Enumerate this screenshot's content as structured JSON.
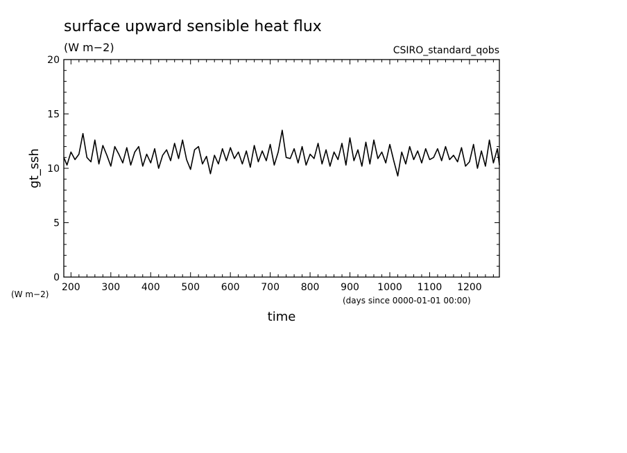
{
  "chart_data": {
    "type": "line",
    "title": "surface upward sensible heat flux",
    "units": "(W m−2)",
    "run_label": "CSIRO_standard_qobs",
    "xlabel": "time",
    "x_units": "(days since 0000-01-01 00:00)",
    "ylabel": "gt_ssh",
    "y_units": "(W m−2)",
    "xlim": [
      182,
      1275
    ],
    "ylim": [
      0,
      20
    ],
    "x_ticks": [
      200,
      300,
      400,
      500,
      600,
      700,
      800,
      900,
      1000,
      1100,
      1200
    ],
    "y_ticks": [
      0,
      5,
      10,
      15,
      20
    ],
    "grid": false,
    "legend": "none",
    "line_color": "#000000",
    "series": [
      {
        "x": [
          182,
          190,
          200,
          210,
          220,
          230,
          240,
          250,
          260,
          270,
          280,
          290,
          300,
          310,
          320,
          330,
          340,
          350,
          360,
          370,
          380,
          390,
          400,
          410,
          420,
          430,
          440,
          450,
          460,
          470,
          480,
          490,
          500,
          510,
          520,
          530,
          540,
          550,
          560,
          570,
          580,
          590,
          600,
          610,
          620,
          630,
          640,
          650,
          660,
          670,
          680,
          690,
          700,
          710,
          720,
          730,
          740,
          750,
          760,
          770,
          780,
          790,
          800,
          810,
          820,
          830,
          840,
          850,
          860,
          870,
          880,
          890,
          900,
          910,
          920,
          930,
          940,
          950,
          960,
          970,
          980,
          990,
          1000,
          1010,
          1020,
          1030,
          1040,
          1050,
          1060,
          1070,
          1080,
          1090,
          1100,
          1110,
          1120,
          1130,
          1140,
          1150,
          1160,
          1170,
          1180,
          1190,
          1200,
          1210,
          1220,
          1230,
          1240,
          1250,
          1260,
          1270,
          1275
        ],
        "values": [
          11.0,
          10.3,
          11.5,
          10.8,
          11.3,
          13.2,
          11.0,
          10.6,
          12.6,
          10.4,
          12.1,
          11.2,
          10.2,
          12.0,
          11.3,
          10.5,
          11.9,
          10.3,
          11.5,
          12.0,
          10.2,
          11.3,
          10.5,
          11.8,
          10.0,
          11.2,
          11.7,
          10.7,
          12.3,
          10.9,
          12.6,
          10.8,
          9.9,
          11.7,
          12.0,
          10.4,
          11.1,
          9.5,
          11.2,
          10.4,
          11.8,
          10.7,
          11.9,
          10.9,
          11.5,
          10.4,
          11.6,
          10.1,
          12.1,
          10.6,
          11.6,
          10.7,
          12.2,
          10.3,
          11.5,
          13.5,
          11.0,
          10.9,
          11.8,
          10.5,
          12.0,
          10.3,
          11.3,
          10.9,
          12.3,
          10.4,
          11.7,
          10.2,
          11.5,
          10.8,
          12.3,
          10.3,
          12.8,
          10.7,
          11.7,
          10.2,
          12.4,
          10.4,
          12.6,
          10.9,
          11.5,
          10.5,
          12.2,
          10.7,
          9.3,
          11.5,
          10.4,
          12.0,
          10.8,
          11.6,
          10.5,
          11.8,
          10.8,
          11.0,
          11.8,
          10.7,
          12.0,
          10.8,
          11.2,
          10.6,
          11.9,
          10.2,
          10.6,
          12.2,
          10.0,
          11.6,
          10.2,
          12.6,
          10.5,
          11.8,
          10.3
        ]
      }
    ]
  }
}
